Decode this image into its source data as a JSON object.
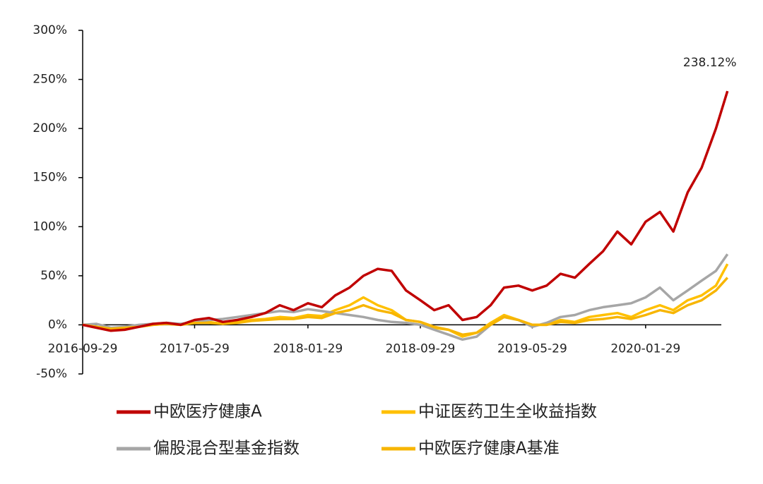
{
  "chart_data": {
    "type": "line",
    "x": [
      "2016-09-29",
      "2016-10-29",
      "2016-11-29",
      "2016-12-29",
      "2017-01-29",
      "2017-02-28",
      "2017-03-29",
      "2017-04-29",
      "2017-05-29",
      "2017-06-29",
      "2017-07-29",
      "2017-08-29",
      "2017-09-29",
      "2017-10-29",
      "2017-11-29",
      "2017-12-29",
      "2018-01-29",
      "2018-02-28",
      "2018-03-29",
      "2018-04-29",
      "2018-05-29",
      "2018-06-29",
      "2018-07-29",
      "2018-08-29",
      "2018-09-29",
      "2018-10-29",
      "2018-11-29",
      "2018-12-29",
      "2019-01-29",
      "2019-02-28",
      "2019-03-29",
      "2019-04-29",
      "2019-05-29",
      "2019-06-29",
      "2019-07-29",
      "2019-08-29",
      "2019-09-29",
      "2019-10-29",
      "2019-11-29",
      "2019-12-29",
      "2020-01-29",
      "2020-02-29",
      "2020-03-29",
      "2020-04-29",
      "2020-05-29",
      "2020-06-29",
      "2020-07-24"
    ],
    "series": [
      {
        "name": "中欧医疗健康A",
        "color": "#c00000",
        "values": [
          0,
          -3,
          -6,
          -5,
          -2,
          1,
          2,
          0,
          5,
          7,
          3,
          5,
          8,
          12,
          20,
          15,
          22,
          18,
          30,
          38,
          50,
          57,
          55,
          35,
          25,
          15,
          20,
          5,
          8,
          20,
          38,
          40,
          35,
          40,
          52,
          48,
          62,
          75,
          95,
          82,
          105,
          115,
          95,
          135,
          160,
          200,
          238.12
        ],
        "value_labels": [
          null,
          null,
          null,
          null,
          null,
          null,
          null,
          null,
          null,
          null,
          null,
          null,
          null,
          null,
          null,
          null,
          null,
          null,
          null,
          null,
          null,
          null,
          null,
          null,
          null,
          null,
          null,
          null,
          null,
          null,
          null,
          null,
          null,
          null,
          null,
          null,
          null,
          null,
          null,
          null,
          null,
          null,
          null,
          null,
          null,
          null,
          "238.12%"
        ]
      },
      {
        "name": "中证医药卫生全收益指数",
        "color": "#ffc000",
        "values": [
          0,
          -2,
          -5,
          -4,
          -2,
          0,
          1,
          0,
          2,
          3,
          1,
          3,
          5,
          6,
          8,
          7,
          10,
          9,
          15,
          20,
          28,
          20,
          15,
          5,
          3,
          -3,
          -5,
          -12,
          -8,
          2,
          10,
          5,
          0,
          0,
          5,
          3,
          8,
          10,
          12,
          8,
          15,
          20,
          15,
          25,
          30,
          40,
          62
        ]
      },
      {
        "name": "偏股混合型基金指数",
        "color": "#a6a6a6",
        "values": [
          0,
          1,
          -3,
          -2,
          0,
          1,
          2,
          1,
          3,
          5,
          6,
          8,
          10,
          12,
          14,
          13,
          16,
          14,
          12,
          10,
          8,
          5,
          3,
          2,
          0,
          -5,
          -10,
          -15,
          -12,
          0,
          8,
          5,
          -2,
          2,
          8,
          10,
          15,
          18,
          20,
          22,
          28,
          38,
          25,
          35,
          45,
          55,
          72
        ]
      },
      {
        "name": "中欧医疗健康A基准",
        "color": "#f7b500",
        "values": [
          0,
          -2,
          -4,
          -3,
          -2,
          0,
          1,
          0,
          2,
          2,
          1,
          2,
          4,
          5,
          6,
          6,
          8,
          7,
          12,
          15,
          20,
          15,
          12,
          5,
          3,
          -2,
          -5,
          -10,
          -8,
          0,
          8,
          5,
          0,
          0,
          3,
          2,
          5,
          6,
          8,
          6,
          10,
          15,
          12,
          20,
          25,
          35,
          48
        ]
      }
    ],
    "xlim": [
      "2016-09-29",
      "2020-07-29"
    ],
    "xticks": [
      "2016-09-29",
      "2017-05-29",
      "2018-01-29",
      "2018-09-29",
      "2019-05-29",
      "2020-01-29"
    ],
    "ylim": [
      -50,
      300
    ],
    "yticks": [
      {
        "value": -50,
        "label": "-50%"
      },
      {
        "value": 0,
        "label": "0%"
      },
      {
        "value": 50,
        "label": "50%"
      },
      {
        "value": 100,
        "label": "100%"
      },
      {
        "value": 150,
        "label": "150%"
      },
      {
        "value": 200,
        "label": "200%"
      },
      {
        "value": 250,
        "label": "250%"
      },
      {
        "value": 300,
        "label": "300%"
      }
    ],
    "grid": false
  }
}
